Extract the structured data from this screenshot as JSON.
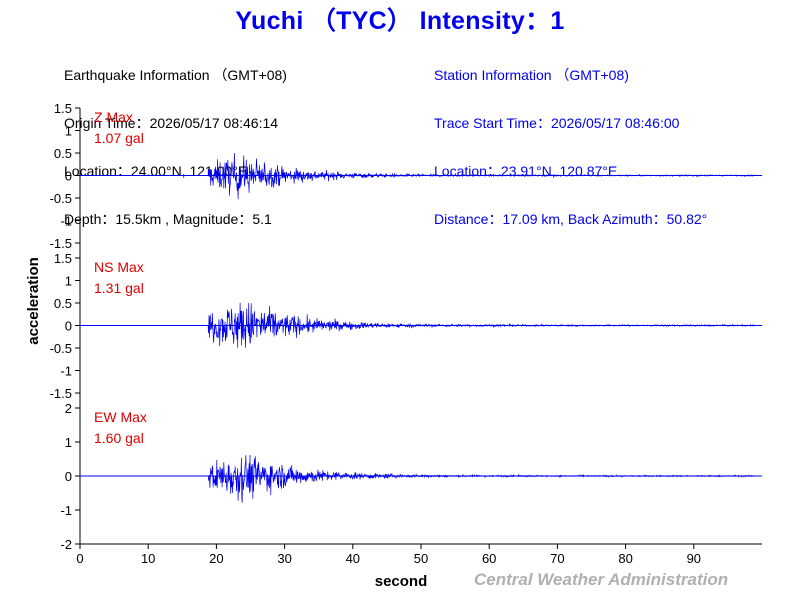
{
  "title": "Yuchi （TYC） Intensity：1",
  "earthquake_info": {
    "heading": "Earthquake Information （GMT+08)",
    "origin_time": "Origin Time：2026/05/17 08:46:14",
    "location": "Location：24.00°N, 121.00°E",
    "depth_magnitude": "Depth：15.5km , Magnitude：5.1"
  },
  "station_info": {
    "heading": "Station Information （GMT+08)",
    "trace_start": "Trace Start Time：2026/05/17 08:46:00",
    "location": "Location：23.91°N, 120.87°E",
    "distance": "Distance：17.09 km, Back Azimuth：50.82°"
  },
  "credit": "Central Weather Administration",
  "chart_data": {
    "type": "line",
    "xlabel": "second",
    "ylabel": "acceleration",
    "xlim": [
      0,
      100
    ],
    "xticks": [
      0,
      10,
      20,
      30,
      40,
      50,
      60,
      70,
      80,
      90
    ],
    "onset_seconds": 18.8,
    "colors": {
      "trace": "#0000ee",
      "max_label": "#dd0000",
      "axis": "#000000"
    },
    "series": [
      {
        "component": "Z",
        "max_label": "Z Max",
        "max_value": "1.07 gal",
        "peak": 1.07,
        "ylim": [
          -1.5,
          1.5
        ],
        "yticks": [
          1.5,
          1,
          0.5,
          0,
          -0.5,
          -1,
          -1.5
        ],
        "peak_time": 23
      },
      {
        "component": "NS",
        "max_label": "NS Max",
        "max_value": "1.31 gal",
        "peak": 1.31,
        "ylim": [
          -1.5,
          1.5
        ],
        "yticks": [
          1.5,
          1,
          0.5,
          0,
          -0.5,
          -1,
          -1.5
        ],
        "peak_time": 24
      },
      {
        "component": "EW",
        "max_label": "EW Max",
        "max_value": "1.60 gal",
        "peak": 1.6,
        "ylim": [
          -2,
          2
        ],
        "yticks": [
          2,
          1,
          0,
          -1,
          -2
        ],
        "peak_time": 24
      }
    ]
  }
}
